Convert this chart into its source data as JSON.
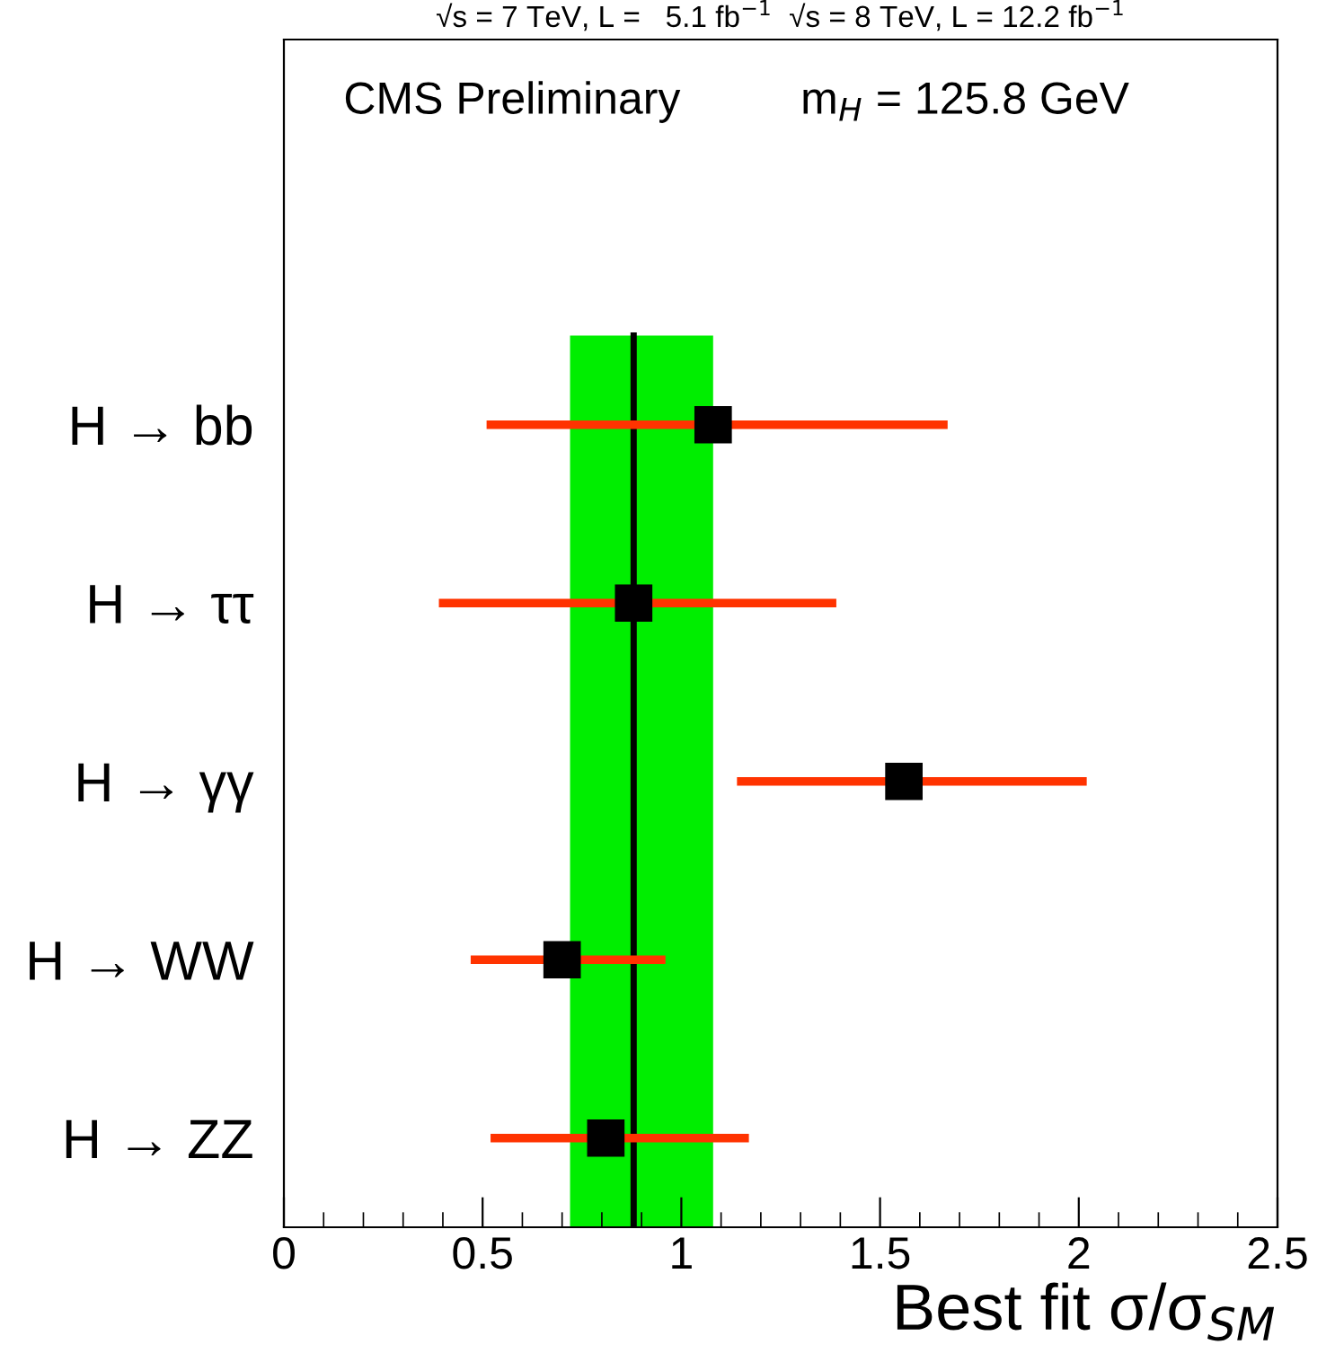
{
  "chart_data": {
    "type": "scatter",
    "orientation": "horizontal",
    "title": "√s = 7 TeV, L =   5.1 fb$^{−1}$  √s = 8 TeV, L = 12.2 fb$^{−1}$",
    "xlabel": "Best fit σ/σ$_{SM}$",
    "annotations": [
      "CMS Preliminary",
      "m$_{H}$ = 125.8 GeV"
    ],
    "categories": [
      "H → bb",
      "H → ττ",
      "H → γγ",
      "H → WW",
      "H → ZZ"
    ],
    "values": [
      1.08,
      0.88,
      1.56,
      0.7,
      0.81
    ],
    "errors": [
      [
        0.51,
        1.67
      ],
      [
        0.39,
        1.39
      ],
      [
        1.14,
        2.02
      ],
      [
        0.47,
        0.96
      ],
      [
        0.52,
        1.17
      ]
    ],
    "color": "#000000",
    "marker": "square",
    "xlim": [
      0,
      2.5
    ],
    "xticks": [
      0,
      0.5,
      1,
      1.5,
      2,
      2.5
    ],
    "bands": [
      {
        "axis": "x",
        "from": 0.72,
        "to": 1.08,
        "color": "#00ee00"
      }
    ],
    "ref_lines": [
      {
        "axis": "x",
        "value": 0.88,
        "color": "#000000"
      }
    ],
    "grid": false,
    "legend": false
  }
}
